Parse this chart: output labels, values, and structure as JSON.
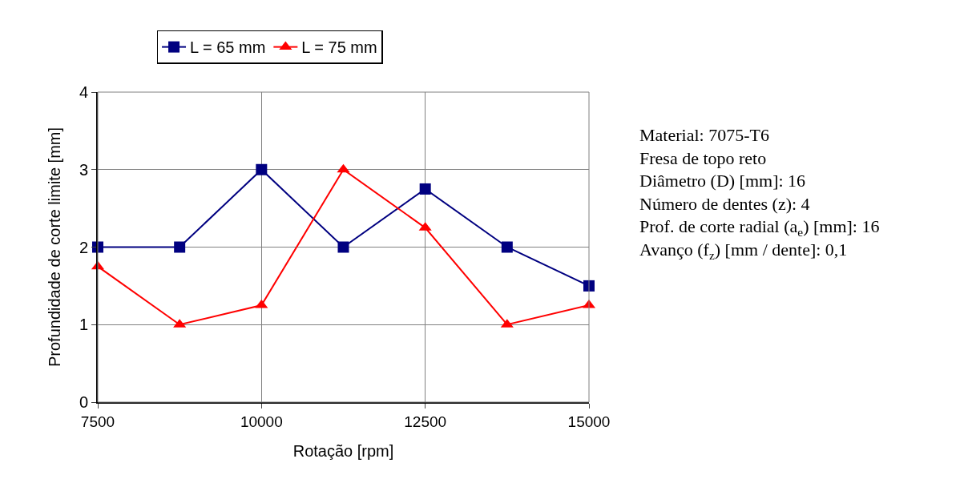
{
  "chart_data": {
    "type": "line",
    "xlabel": "Rotação [rpm]",
    "ylabel": "Profundidade de corte limite [mm]",
    "x": [
      7500,
      8750,
      10000,
      11250,
      12500,
      13750,
      15000
    ],
    "series": [
      {
        "name": "L = 65 mm",
        "color": "#000080",
        "marker": "square",
        "values": [
          2,
          2,
          3,
          2,
          2.75,
          2,
          1.5
        ]
      },
      {
        "name": "L = 75 mm",
        "color": "#ff0000",
        "marker": "triangle",
        "values": [
          1.75,
          1,
          1.25,
          3,
          2.25,
          1,
          1.25
        ]
      }
    ],
    "xlim": [
      7500,
      15000
    ],
    "xticks": [
      7500,
      10000,
      12500,
      15000
    ],
    "ylim": [
      0,
      4
    ],
    "yticks": [
      0,
      1,
      2,
      3,
      4
    ],
    "grid": true,
    "legend": "top",
    "line_style": "solid",
    "annotations": [
      "Material: 7075-T6",
      "Fresa de topo reto",
      "Diâmetro (D) [mm]: 16",
      "Número de dentes (z): 4",
      "Prof. de corte radial (a$_{e}$) [mm]: 16",
      "Avanço (f$_{z}$) [mm / dente]: 0,1"
    ]
  }
}
